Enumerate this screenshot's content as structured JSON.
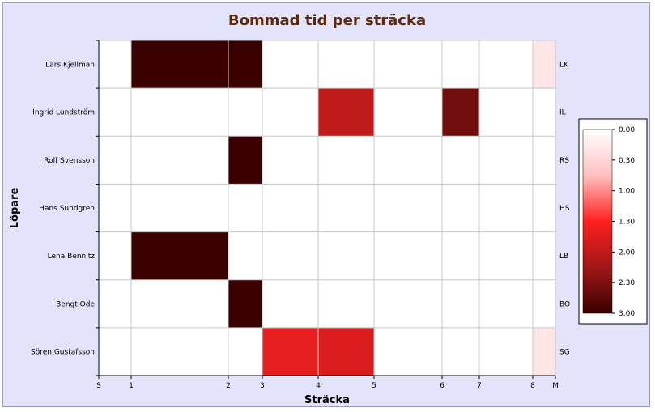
{
  "chart_data": {
    "type": "heatmap",
    "title": "Bommad tid per sträcka",
    "xlabel": "Sträcka",
    "ylabel": "Löpare",
    "x_ticks": [
      {
        "label": "S",
        "value": 0
      },
      {
        "label": "1",
        "value": 1
      },
      {
        "label": "2",
        "value": 2
      },
      {
        "label": "3",
        "value": 3
      },
      {
        "label": "4",
        "value": 4
      },
      {
        "label": "5",
        "value": 5
      },
      {
        "label": "6",
        "value": 6
      },
      {
        "label": "7",
        "value": 7
      },
      {
        "label": "8",
        "value": 8
      },
      {
        "label": "M",
        "value": 9
      }
    ],
    "runners": [
      {
        "name": "Lars Kjellman",
        "abbr": "LK"
      },
      {
        "name": "Ingrid Lundström",
        "abbr": "IL"
      },
      {
        "name": "Rolf Svensson",
        "abbr": "RS"
      },
      {
        "name": "Hans Sundgren",
        "abbr": "HS"
      },
      {
        "name": "Lena Bennitz",
        "abbr": "LB"
      },
      {
        "name": "Bengt Ode",
        "abbr": "BO"
      },
      {
        "name": "Sören Gustafsson",
        "abbr": "SG"
      }
    ],
    "values": [
      [
        0,
        3,
        3,
        0,
        0,
        0,
        0,
        0,
        0.3
      ],
      [
        0,
        0,
        0,
        0,
        2,
        0,
        2.6,
        0,
        0
      ],
      [
        0,
        0,
        3,
        0,
        0,
        0,
        0,
        0,
        0
      ],
      [
        0,
        0,
        0,
        0,
        0,
        0,
        0,
        0,
        0
      ],
      [
        0,
        3,
        0,
        0,
        0,
        0,
        0,
        0,
        0
      ],
      [
        0,
        0,
        3,
        0,
        0,
        0,
        0,
        0,
        0
      ],
      [
        0,
        0,
        0,
        1.7,
        1.8,
        0,
        0,
        0,
        0.3
      ]
    ],
    "colorbar": {
      "min": 0,
      "max": 3,
      "tick_labels": [
        "0.00",
        "0.30",
        "1.00",
        "1.30",
        "2.00",
        "2.30",
        "3.00"
      ],
      "colors": [
        "#ffffff",
        "#ffc0c0",
        "#ff2020",
        "#a01818",
        "#3a0000"
      ]
    },
    "grid": true
  }
}
